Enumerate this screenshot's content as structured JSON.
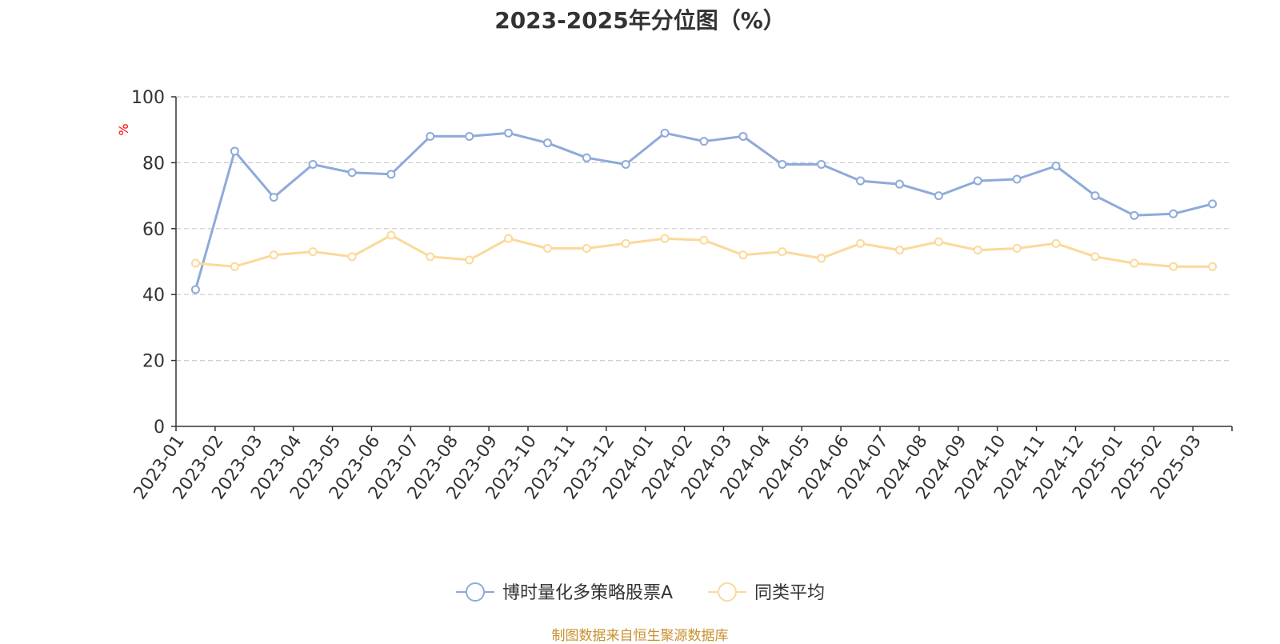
{
  "chart_data": {
    "type": "line",
    "title": "2023-2025年分位图（%）",
    "ylabel": "%",
    "xlabel": "",
    "ylim": [
      0,
      100
    ],
    "yticks": [
      0,
      20,
      40,
      60,
      80,
      100
    ],
    "grid": true,
    "legend_position": "bottom",
    "categories": [
      "2023-01",
      "2023-02",
      "2023-03",
      "2023-04",
      "2023-05",
      "2023-06",
      "2023-07",
      "2023-08",
      "2023-09",
      "2023-10",
      "2023-11",
      "2023-12",
      "2024-01",
      "2024-02",
      "2024-03",
      "2024-04",
      "2024-05",
      "2024-06",
      "2024-07",
      "2024-08",
      "2024-09",
      "2024-10",
      "2024-11",
      "2024-12",
      "2025-01",
      "2025-02",
      "2025-03"
    ],
    "series": [
      {
        "name": "博时量化多策略股票A",
        "color": "#8eaadb",
        "values": [
          41.5,
          83.5,
          69.5,
          79.5,
          77,
          76.5,
          88,
          88,
          89,
          86,
          81.5,
          79.5,
          89,
          86.5,
          88,
          79.5,
          79.5,
          74.5,
          73.5,
          70,
          74.5,
          75,
          79,
          70,
          64,
          64.5,
          67.5
        ]
      },
      {
        "name": "同类平均",
        "color": "#fbd99a",
        "values": [
          49.5,
          48.5,
          52,
          53,
          51.5,
          58,
          51.5,
          50.5,
          57,
          54,
          54,
          55.5,
          57,
          56.5,
          52,
          53,
          51,
          55.5,
          53.5,
          56,
          53.5,
          54,
          55.5,
          51.5,
          49.5,
          48.5,
          48.5
        ]
      }
    ]
  },
  "source": "制图数据来自恒生聚源数据库",
  "colors": {
    "axis": "#333333",
    "grid": "#cccccc",
    "ylabel": "#ff0000",
    "source": "#c8912f"
  }
}
